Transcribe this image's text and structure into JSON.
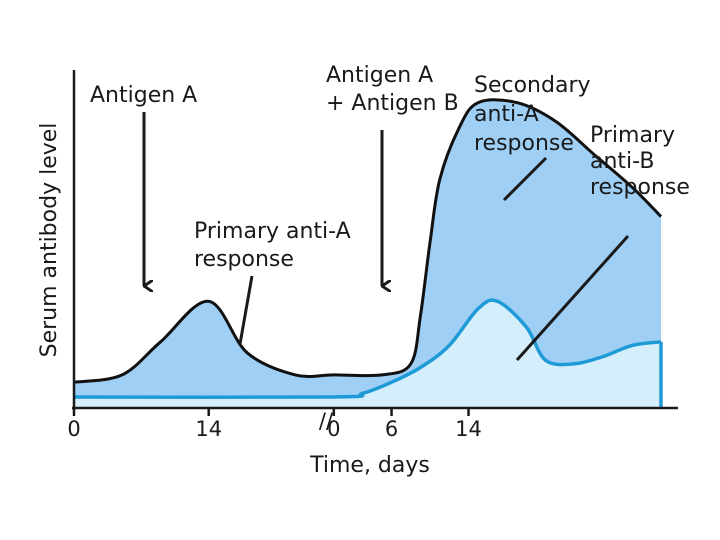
{
  "chart_data": {
    "type": "area",
    "title": "",
    "xlabel": "Time, days",
    "ylabel": "Serum antibody level",
    "x_ticks": [
      {
        "segment": "first",
        "day": 0,
        "label": "0"
      },
      {
        "segment": "first",
        "day": 14,
        "label": "14"
      },
      {
        "segment": "second",
        "day": 0,
        "label": "0"
      },
      {
        "segment": "second",
        "day": 6,
        "label": "6"
      },
      {
        "segment": "second",
        "day": 14,
        "label": "14"
      }
    ],
    "axis_break": "//",
    "series": [
      {
        "key": "anti_a",
        "fill": "#9fcff5",
        "stroke": "#111111",
        "points": [
          [
            0,
            0.07
          ],
          [
            5,
            0.09
          ],
          [
            9,
            0.18
          ],
          [
            14,
            0.29
          ],
          [
            18,
            0.15
          ],
          [
            23,
            0.09
          ],
          [
            27,
            0.09
          ],
          [
            32,
            0.09
          ],
          [
            35,
            0.12
          ],
          [
            36,
            0.25
          ],
          [
            37,
            0.45
          ],
          [
            38,
            0.62
          ],
          [
            40,
            0.76
          ],
          [
            42,
            0.83
          ],
          [
            46,
            0.83
          ],
          [
            50,
            0.78
          ],
          [
            54,
            0.69
          ],
          [
            58,
            0.6
          ],
          [
            61,
            0.52
          ]
        ]
      },
      {
        "key": "anti_b",
        "fill": "#d4eefc",
        "stroke": "#1e9ad6",
        "points": [
          [
            0,
            0.03
          ],
          [
            27,
            0.03
          ],
          [
            30,
            0.04
          ],
          [
            33,
            0.07
          ],
          [
            36,
            0.11
          ],
          [
            39,
            0.17
          ],
          [
            42,
            0.27
          ],
          [
            44,
            0.29
          ],
          [
            47,
            0.22
          ],
          [
            49,
            0.13
          ],
          [
            52,
            0.12
          ],
          [
            55,
            0.14
          ],
          [
            58,
            0.17
          ],
          [
            61,
            0.18
          ]
        ]
      }
    ],
    "annotations": [
      {
        "key": "antigen_a",
        "lines": [
          "Antigen A"
        ]
      },
      {
        "key": "antigen_ab",
        "lines": [
          "Antigen A",
          "+ Antigen B"
        ]
      },
      {
        "key": "primary_a",
        "lines": [
          "Primary anti-A",
          "response"
        ]
      },
      {
        "key": "secondary_a",
        "lines": [
          "Secondary",
          "anti-A",
          "response"
        ]
      },
      {
        "key": "primary_b",
        "lines": [
          "Primary",
          "anti-B",
          "response"
        ]
      }
    ]
  }
}
